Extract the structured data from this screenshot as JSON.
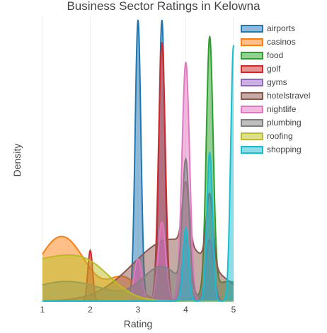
{
  "chart_data": {
    "type": "area",
    "title": "Business Sector Ratings in Kelowna",
    "xlabel": "Rating",
    "ylabel": "Density",
    "xlim": [
      1,
      5
    ],
    "x_ticks": [
      "1",
      "2",
      "3",
      "4",
      "5"
    ],
    "y_ticks_shown": false,
    "grid": "vertical",
    "legend_position": "right",
    "series": [
      {
        "name": "airports",
        "color": "#1f77b4",
        "components": [
          {
            "mu": 3.0,
            "sigma": 0.06,
            "peak": 1.0
          },
          {
            "mu": 3.5,
            "sigma": 0.06,
            "peak": 1.0
          }
        ]
      },
      {
        "name": "casinos",
        "color": "#ff7f0e",
        "components": [
          {
            "mu": 1.4,
            "sigma": 0.5,
            "peak": 0.23
          },
          {
            "mu": 2.7,
            "sigma": 0.3,
            "peak": 0.08
          }
        ]
      },
      {
        "name": "food",
        "color": "#2ca02c",
        "components": [
          {
            "mu": 4.5,
            "sigma": 0.07,
            "peak": 0.9
          },
          {
            "mu": 4.9,
            "sigma": 0.4,
            "peak": 0.07
          }
        ]
      },
      {
        "name": "golf",
        "color": "#d62728",
        "components": [
          {
            "mu": 2.0,
            "sigma": 0.05,
            "peak": 0.18
          },
          {
            "mu": 3.5,
            "sigma": 0.07,
            "peak": 0.92
          }
        ]
      },
      {
        "name": "gyms",
        "color": "#9467bd",
        "components": [
          {
            "mu": 3.0,
            "sigma": 0.08,
            "peak": 0.14
          },
          {
            "mu": 3.5,
            "sigma": 0.08,
            "peak": 0.22
          },
          {
            "mu": 4.0,
            "sigma": 0.08,
            "peak": 0.22
          },
          {
            "mu": 4.5,
            "sigma": 0.08,
            "peak": 0.22
          }
        ]
      },
      {
        "name": "hotelstravel",
        "color": "#8c564b",
        "components": [
          {
            "mu": 3.7,
            "sigma": 0.8,
            "peak": 0.22
          },
          {
            "mu": 4.0,
            "sigma": 0.07,
            "peak": 0.22
          },
          {
            "mu": 4.5,
            "sigma": 0.07,
            "peak": 0.25
          }
        ]
      },
      {
        "name": "nightlife",
        "color": "#e377c2",
        "components": [
          {
            "mu": 4.0,
            "sigma": 0.08,
            "peak": 0.85
          },
          {
            "mu": 3.5,
            "sigma": 0.08,
            "peak": 0.28
          },
          {
            "mu": 3.0,
            "sigma": 0.08,
            "peak": 0.15
          }
        ]
      },
      {
        "name": "plumbing",
        "color": "#7f7f7f",
        "components": [
          {
            "mu": 4.0,
            "sigma": 0.07,
            "peak": 0.45
          },
          {
            "mu": 3.5,
            "sigma": 0.4,
            "peak": 0.12
          },
          {
            "mu": 1.5,
            "sigma": 0.8,
            "peak": 0.07
          }
        ]
      },
      {
        "name": "roofing",
        "color": "#bcbd22",
        "components": [
          {
            "mu": 1.0,
            "sigma": 0.8,
            "peak": 0.14
          },
          {
            "mu": 2.0,
            "sigma": 0.5,
            "peak": 0.08
          }
        ]
      },
      {
        "name": "shopping",
        "color": "#17becf",
        "components": [
          {
            "mu": 5.0,
            "sigma": 0.06,
            "peak": 0.91
          },
          {
            "mu": 4.5,
            "sigma": 0.06,
            "peak": 0.53
          },
          {
            "mu": 4.0,
            "sigma": 0.06,
            "peak": 0.26
          }
        ]
      }
    ]
  }
}
